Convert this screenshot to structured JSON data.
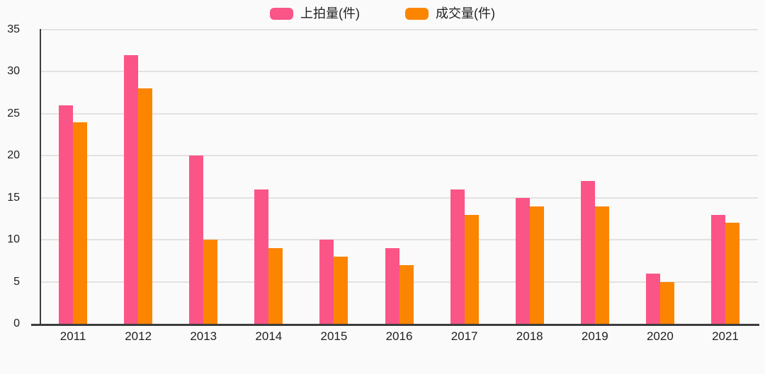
{
  "chart_data": {
    "type": "bar",
    "title": "",
    "xlabel": "",
    "ylabel": "",
    "categories": [
      "2011",
      "2012",
      "2013",
      "2014",
      "2015",
      "2016",
      "2017",
      "2018",
      "2019",
      "2020",
      "2021"
    ],
    "series": [
      {
        "name": "上拍量(件)",
        "color": "#FB5587",
        "values": [
          26,
          32,
          20,
          16,
          10,
          9,
          16,
          15,
          17,
          6,
          13
        ]
      },
      {
        "name": "成交量(件)",
        "color": "#FC8500",
        "values": [
          24,
          28,
          10,
          9,
          8,
          7,
          13,
          14,
          14,
          5,
          12
        ]
      }
    ],
    "ylim": [
      0,
      35
    ],
    "yticks": [
      0,
      5,
      10,
      15,
      20,
      25,
      30,
      35
    ],
    "grid": true,
    "legend_position": "top-center"
  },
  "colors": {
    "background": "#FAFAFA",
    "gridline": "#E2E2E2",
    "axis": "#3D3D3D",
    "text": "#1F1F1F"
  }
}
